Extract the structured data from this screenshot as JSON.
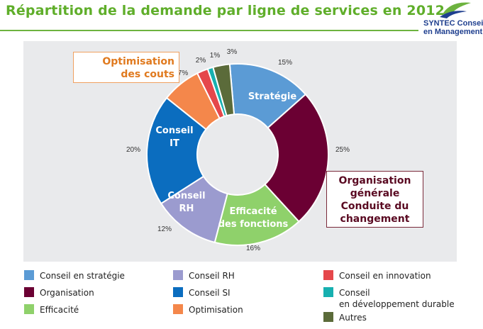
{
  "title": "Répartition de la demande par ligne de services en 2012",
  "logo": {
    "line1": "SYNTEC Conseil",
    "line2": "en Management"
  },
  "callouts": {
    "optimisation": [
      "Optimisation",
      "des couts"
    ],
    "organisation": [
      "Organisation",
      "générale",
      "Conduite du",
      "changement"
    ]
  },
  "chart_data": {
    "type": "pie",
    "donut": true,
    "title": "",
    "slices": [
      {
        "name": "Conseil en stratégie",
        "value": 15,
        "label": "15%",
        "color": "#5b9bd5",
        "inner": [
          "Stratégie"
        ]
      },
      {
        "name": "Organisation",
        "value": 25,
        "label": "25%",
        "color": "#6b0033",
        "inner": []
      },
      {
        "name": "Efficacité",
        "value": 16,
        "label": "16%",
        "color": "#8fd16b",
        "inner": [
          "Efficacité",
          "des fonctions"
        ]
      },
      {
        "name": "Conseil RH",
        "value": 12,
        "label": "12%",
        "color": "#9b9bcf",
        "inner": [
          "Conseil",
          "RH"
        ]
      },
      {
        "name": "Conseil SI",
        "value": 20,
        "label": "20%",
        "color": "#0b6dbf",
        "inner": [
          "Conseil",
          "IT"
        ]
      },
      {
        "name": "Optimisation",
        "value": 7,
        "label": "7%",
        "color": "#f4874b",
        "inner": []
      },
      {
        "name": "Conseil en innovation",
        "value": 2,
        "label": "2%",
        "color": "#e5474b",
        "inner": []
      },
      {
        "name": "Conseil en développement durable",
        "value": 1,
        "label": "1%",
        "color": "#17b0b0",
        "inner": []
      },
      {
        "name": "Autres",
        "value": 3,
        "label": "3%",
        "color": "#5b6b3a",
        "inner": []
      }
    ],
    "legend": [
      {
        "label": "Conseil en stratégie",
        "color": "#5b9bd5"
      },
      {
        "label": "Organisation",
        "color": "#6b0033"
      },
      {
        "label": "Efficacité",
        "color": "#8fd16b"
      },
      {
        "label": "Conseil RH",
        "color": "#9b9bcf"
      },
      {
        "label": "Conseil SI",
        "color": "#0b6dbf"
      },
      {
        "label": "Optimisation",
        "color": "#f4874b"
      },
      {
        "label": "Conseil en innovation",
        "color": "#e5474b"
      },
      {
        "label": "Conseil\nen développement durable",
        "color": "#17b0b0"
      },
      {
        "label": "Autres",
        "color": "#5b6b3a"
      }
    ],
    "legend_position": "bottom"
  }
}
